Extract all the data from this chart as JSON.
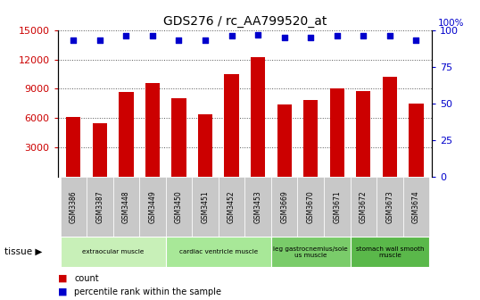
{
  "title": "GDS276 / rc_AA799520_at",
  "categories": [
    "GSM3386",
    "GSM3387",
    "GSM3448",
    "GSM3449",
    "GSM3450",
    "GSM3451",
    "GSM3452",
    "GSM3453",
    "GSM3669",
    "GSM3670",
    "GSM3671",
    "GSM3672",
    "GSM3673",
    "GSM3674"
  ],
  "bar_values": [
    6100,
    5500,
    8700,
    9600,
    8000,
    6400,
    10500,
    12200,
    7400,
    7900,
    9000,
    8800,
    10200,
    7500
  ],
  "percentile_values": [
    93,
    93,
    96,
    96,
    93,
    93,
    96,
    97,
    95,
    95,
    96,
    96,
    96,
    93
  ],
  "bar_color": "#cc0000",
  "dot_color": "#0000cc",
  "ylim_left": [
    0,
    15000
  ],
  "ylim_right": [
    0,
    100
  ],
  "yticks_left": [
    3000,
    6000,
    9000,
    12000,
    15000
  ],
  "yticks_right": [
    0,
    25,
    50,
    75,
    100
  ],
  "tissue_groups": [
    {
      "label": "extraocular muscle",
      "start": 0,
      "end": 4,
      "color": "#c8f0b8"
    },
    {
      "label": "cardiac ventricle muscle",
      "start": 4,
      "end": 8,
      "color": "#a8e898"
    },
    {
      "label": "leg gastrocnemius/sole\nus muscle",
      "start": 8,
      "end": 11,
      "color": "#7acc6a"
    },
    {
      "label": "stomach wall smooth\nmuscle",
      "start": 11,
      "end": 14,
      "color": "#5ab84a"
    }
  ],
  "background_color": "#ffffff",
  "grid_color": "#555555",
  "tick_label_bg": "#cccccc",
  "label_count": "count",
  "label_pct": "percentile rank within the sample",
  "tissue_text": "tissue",
  "right_axis_label": "100%"
}
